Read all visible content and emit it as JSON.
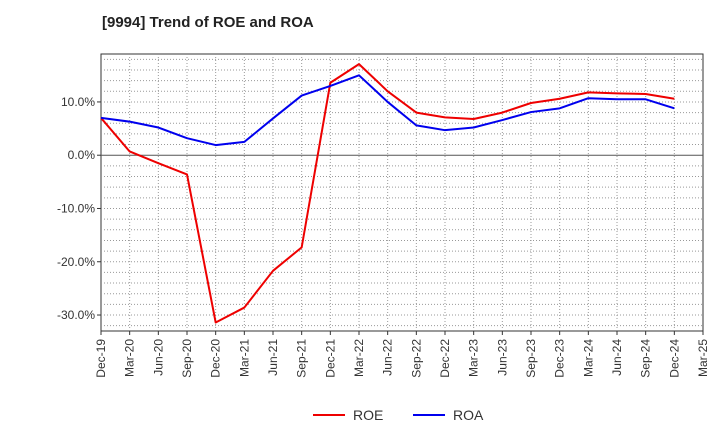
{
  "chart_data": {
    "type": "line",
    "title": "[9994]  Trend of ROE and ROA",
    "x": [
      "Dec-19",
      "Mar-20",
      "Jun-20",
      "Sep-20",
      "Dec-20",
      "Mar-21",
      "Jun-21",
      "Sep-21",
      "Dec-21",
      "Mar-22",
      "Jun-22",
      "Sep-22",
      "Dec-22",
      "Mar-23",
      "Jun-23",
      "Sep-23",
      "Dec-23",
      "Mar-24",
      "Jun-24",
      "Sep-24",
      "Dec-24"
    ],
    "x_ticks": [
      "Dec-19",
      "Mar-20",
      "Jun-20",
      "Sep-20",
      "Dec-20",
      "Mar-21",
      "Jun-21",
      "Sep-21",
      "Dec-21",
      "Mar-22",
      "Jun-22",
      "Sep-22",
      "Dec-22",
      "Mar-23",
      "Jun-23",
      "Sep-23",
      "Dec-23",
      "Mar-24",
      "Jun-24",
      "Sep-24",
      "Dec-24",
      "Mar-25"
    ],
    "series": [
      {
        "name": "ROE",
        "color": "#ee0000",
        "values": [
          7.0,
          0.7,
          -1.5,
          -3.6,
          -31.4,
          -28.6,
          -21.7,
          -17.3,
          13.6,
          17.1,
          12.0,
          8.0,
          7.1,
          6.8,
          8.0,
          9.8,
          10.6,
          11.8,
          11.6,
          11.5,
          10.6
        ]
      },
      {
        "name": "ROA",
        "color": "#0000ee",
        "values": [
          7.0,
          6.3,
          5.2,
          3.2,
          1.9,
          2.5,
          6.9,
          11.2,
          13.0,
          15.0,
          10.0,
          5.6,
          4.7,
          5.2,
          6.6,
          8.1,
          8.8,
          10.7,
          10.5,
          10.5,
          8.8
        ]
      }
    ],
    "ylim": [
      -33,
      19
    ],
    "yticks": [
      10,
      0,
      -10,
      -20,
      -30
    ],
    "ytick_labels": [
      "10.0%",
      "0.0%",
      "-10.0%",
      "-20.0%",
      "-30.0%"
    ],
    "legend": "bottom-center",
    "grid": true
  }
}
